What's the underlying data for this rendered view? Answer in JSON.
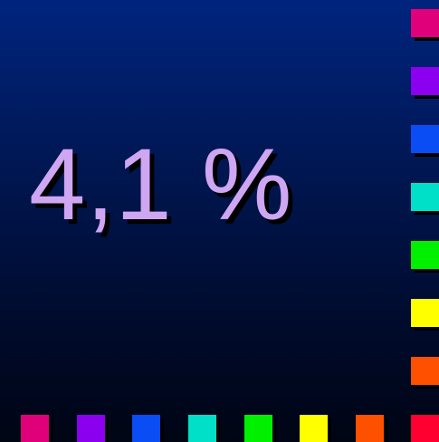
{
  "slide": {
    "value_text": "4,1 %"
  },
  "colors": {
    "text": "#cfa6f2",
    "right_squares": [
      "#e0007a",
      "#8a00ef",
      "#0a4df5",
      "#00e0c8",
      "#00f000",
      "#ffff00",
      "#ff5000"
    ],
    "bottom_squares": [
      "#e0007a",
      "#8a00ef",
      "#0a4df5",
      "#00e0c8",
      "#00f000",
      "#ffff00",
      "#ff5000",
      "#ff0030"
    ]
  }
}
